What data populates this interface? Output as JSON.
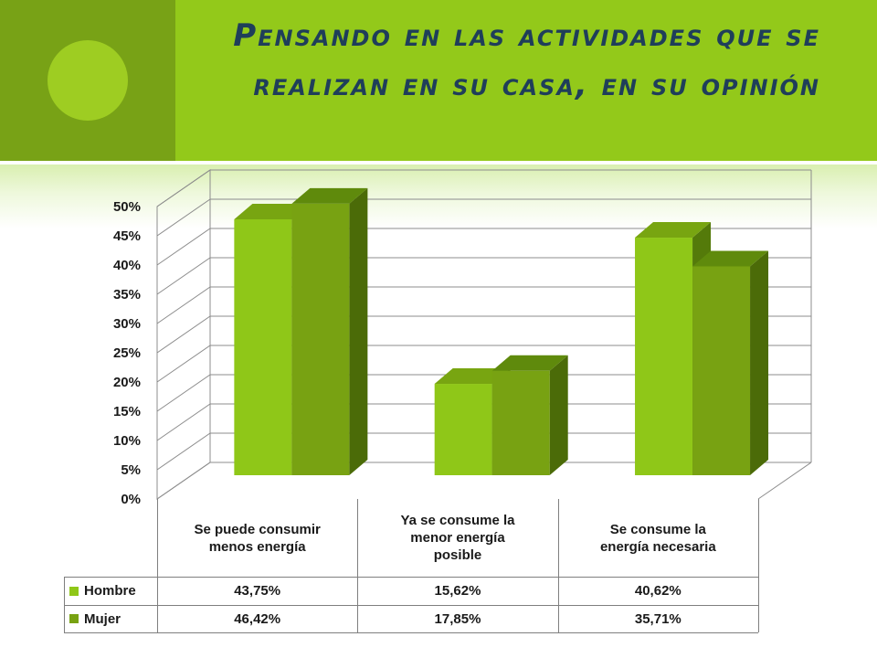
{
  "title": "Pensando en las actividades que se realizan en su casa, en su opinión",
  "colors": {
    "header_band": "#93c91a",
    "header_square": "#78a216",
    "title_text": "#1f3e5a",
    "hombre_front": "#8fc718",
    "hombre_top": "#78a511",
    "hombre_side": "#547a0a",
    "mujer_front": "#78a212",
    "mujer_top": "#5f8a0c",
    "mujer_side": "#4b6b08",
    "gridline": "#8c8c8c"
  },
  "chart_data": {
    "type": "bar",
    "subtype": "3d-clustered-column",
    "categories": [
      "Se puede consumir menos energía",
      "Ya se consume la menor energía posible",
      "Se consume la energía necesaria"
    ],
    "series": [
      {
        "name": "Hombre",
        "values": [
          43.75,
          15.62,
          40.62
        ],
        "labels": [
          "43,75%",
          "15,62%",
          "40,62%"
        ]
      },
      {
        "name": "Mujer",
        "values": [
          46.42,
          17.85,
          35.71
        ],
        "labels": [
          "46,42%",
          "17,85%",
          "35,71%"
        ]
      }
    ],
    "ylim": [
      0,
      50
    ],
    "yticks": [
      "0%",
      "5%",
      "10%",
      "15%",
      "20%",
      "25%",
      "30%",
      "35%",
      "40%",
      "45%",
      "50%"
    ],
    "grid": true,
    "legend": "data-table"
  },
  "table": {
    "category_headers": [
      [
        "Se puede consumir",
        "menos energía"
      ],
      [
        "Ya se consume la",
        "menor energía",
        "posible"
      ],
      [
        "Se consume la",
        "energía necesaria"
      ]
    ]
  }
}
